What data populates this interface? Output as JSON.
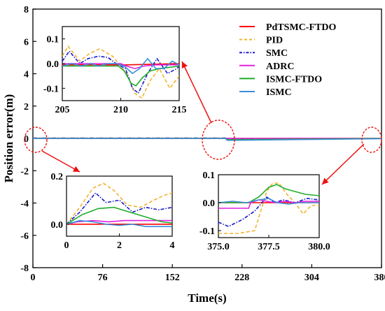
{
  "chart_data": {
    "type": "line",
    "xlabel": "Time(s)",
    "ylabel": "Position error(m)",
    "xlim": [
      0,
      380
    ],
    "ylim": [
      -8,
      8
    ],
    "xticks": [
      "0",
      "76",
      "152",
      "228",
      "304",
      "380"
    ],
    "yticks": [
      "-8",
      "-6",
      "-4",
      "-2",
      "0",
      "2",
      "4",
      "6",
      "8"
    ],
    "legend_position": "top-right",
    "series": [
      {
        "name": "PdTSMC-FTDO",
        "color": "#ff0000",
        "dash": "solid",
        "x": [
          0,
          380
        ],
        "y": [
          0.0,
          0.0
        ]
      },
      {
        "name": "PID",
        "color": "#f2b32d",
        "dash": "dashed",
        "x": [
          0,
          210,
          212,
          380
        ],
        "y": [
          0.02,
          0.02,
          -0.05,
          -0.01
        ]
      },
      {
        "name": "SMC",
        "color": "#1a1acc",
        "dash": "dashdot",
        "x": [
          0,
          210,
          212,
          380
        ],
        "y": [
          0.02,
          0.02,
          -0.05,
          -0.01
        ]
      },
      {
        "name": "ADRC",
        "color": "#e020e0",
        "dash": "solid",
        "x": [
          0,
          380
        ],
        "y": [
          0.0,
          0.0
        ]
      },
      {
        "name": "ISMC-FTDO",
        "color": "#1fae2a",
        "dash": "solid",
        "x": [
          0,
          210,
          211,
          380
        ],
        "y": [
          0.0,
          0.0,
          -0.08,
          -0.01
        ]
      },
      {
        "name": "ISMC",
        "color": "#3a8ed8",
        "dash": "solid",
        "x": [
          0,
          210,
          212,
          380
        ],
        "y": [
          0.0,
          0.0,
          -0.12,
          -0.02
        ]
      }
    ],
    "insets": [
      {
        "id": "inset-top",
        "xlim": [
          205,
          215
        ],
        "ylim": [
          -0.15,
          0.15
        ],
        "xticks": [
          "205",
          "210",
          "215"
        ],
        "yticks": [
          "-0.1",
          "0.0",
          "0.1"
        ],
        "series": [
          {
            "name": "PdTSMC-FTDO",
            "x": [
              205,
              210,
              210.5,
              215
            ],
            "y": [
              -0.005,
              -0.005,
              -0.005,
              0.0
            ]
          },
          {
            "name": "PID",
            "x": [
              205,
              205.5,
              206.5,
              207.3,
              208.2,
              209.3,
              210.5,
              211.2,
              211.8,
              212.5,
              213.3,
              214.2,
              215
            ],
            "y": [
              0.03,
              0.07,
              0.01,
              0.04,
              0.06,
              0.03,
              -0.04,
              -0.12,
              -0.14,
              -0.07,
              -0.02,
              -0.1,
              -0.05
            ]
          },
          {
            "name": "SMC",
            "x": [
              205,
              205.6,
              206.5,
              207.2,
              208.1,
              208.9,
              209.6,
              210.4,
              211,
              211.5,
              212.3,
              213.1,
              214,
              214.8,
              215
            ],
            "y": [
              0.01,
              0.05,
              0.0,
              0.02,
              0.03,
              0.025,
              0.0,
              -0.02,
              -0.1,
              -0.12,
              -0.04,
              0.02,
              -0.04,
              -0.02,
              -0.01
            ]
          },
          {
            "name": "ADRC",
            "x": [
              205,
              208,
              210,
              210.5,
              211.2,
              212,
              213,
              214,
              215
            ],
            "y": [
              0.0,
              0.0,
              0.0,
              -0.01,
              -0.02,
              -0.01,
              -0.005,
              -0.005,
              -0.005
            ]
          },
          {
            "name": "ISMC-FTDO",
            "x": [
              205,
              209.8,
              210.3,
              210.9,
              211.3,
              211.8,
              212.5,
              213.3,
              214.2,
              215
            ],
            "y": [
              -0.01,
              -0.01,
              -0.03,
              -0.08,
              -0.09,
              -0.06,
              -0.03,
              -0.02,
              -0.015,
              -0.01
            ]
          },
          {
            "name": "ISMC",
            "x": [
              205,
              205.8,
              206.6,
              207.4,
              208.1,
              208.9,
              209.6,
              210.3,
              211,
              211.6,
              212.3,
              213,
              213.7,
              214.4,
              215
            ],
            "y": [
              -0.01,
              0.0,
              -0.01,
              0.0,
              -0.01,
              0.0,
              0.0,
              -0.01,
              -0.04,
              -0.02,
              0.02,
              -0.02,
              -0.02,
              0.01,
              -0.005
            ]
          }
        ]
      },
      {
        "id": "inset-bottom-left",
        "xlim": [
          0,
          4
        ],
        "ylim": [
          -0.05,
          0.2
        ],
        "xticks": [
          "0",
          "2",
          "4"
        ],
        "yticks": [
          "0.0",
          "0.2"
        ],
        "series": [
          {
            "name": "PdTSMC-FTDO",
            "x": [
              0,
              4
            ],
            "y": [
              0.0,
              0.0
            ]
          },
          {
            "name": "PID",
            "x": [
              0,
              0.5,
              1.0,
              1.4,
              1.8,
              2.3,
              2.8,
              3.3,
              3.7,
              4.0
            ],
            "y": [
              0.0,
              0.07,
              0.15,
              0.17,
              0.14,
              0.08,
              0.07,
              0.1,
              0.12,
              0.13
            ]
          },
          {
            "name": "SMC",
            "x": [
              0,
              0.5,
              1.1,
              1.5,
              2.0,
              2.5,
              3.0,
              3.5,
              4.0
            ],
            "y": [
              0.0,
              0.05,
              0.13,
              0.09,
              0.1,
              0.05,
              0.07,
              0.06,
              0.07
            ]
          },
          {
            "name": "ADRC",
            "x": [
              0,
              0.4,
              1.0,
              1.6,
              2.2,
              2.8,
              3.4,
              4.0
            ],
            "y": [
              0.0,
              0.01,
              0.015,
              0.01,
              0.015,
              0.015,
              0.015,
              0.015
            ]
          },
          {
            "name": "ISMC-FTDO",
            "x": [
              0,
              0.6,
              1.2,
              1.8,
              2.4,
              3.0,
              3.6,
              4.0
            ],
            "y": [
              0.0,
              0.04,
              0.065,
              0.07,
              0.05,
              0.03,
              0.01,
              0.005
            ]
          },
          {
            "name": "ISMC",
            "x": [
              0,
              0.5,
              1.0,
              1.5,
              2.0,
              2.5,
              3.0,
              3.5,
              4.0
            ],
            "y": [
              0.0,
              0.015,
              0.01,
              0.0,
              -0.005,
              0.0,
              -0.01,
              -0.01,
              -0.01
            ]
          }
        ]
      },
      {
        "id": "inset-bottom-right",
        "xlim": [
          375,
          380
        ],
        "ylim": [
          -0.125,
          0.1
        ],
        "xticks": [
          "375.0",
          "377.5",
          "380.0"
        ],
        "yticks": [
          "-0.1",
          "0.0",
          "0.1"
        ],
        "series": [
          {
            "name": "PdTSMC-FTDO",
            "x": [
              375,
              380
            ],
            "y": [
              0.0,
              0.0
            ]
          },
          {
            "name": "PID",
            "x": [
              375,
              375.5,
              376,
              376.8,
              377.1,
              377.4,
              377.7,
              378.0,
              378.4,
              378.8,
              379.2,
              379.6,
              380
            ],
            "y": [
              -0.11,
              -0.11,
              -0.11,
              -0.1,
              -0.03,
              0.04,
              0.07,
              0.07,
              0.03,
              0.0,
              -0.04,
              -0.01,
              -0.01
            ]
          },
          {
            "name": "SMC",
            "x": [
              375,
              375.5,
              376.2,
              376.8,
              377.1,
              377.4,
              377.8,
              378.2,
              378.8,
              379.4,
              380
            ],
            "y": [
              -0.07,
              -0.085,
              -0.06,
              -0.03,
              -0.005,
              0.02,
              0.0,
              0.01,
              0.0,
              0.015,
              0.01
            ]
          },
          {
            "name": "ADRC",
            "x": [
              375,
              376.5,
              376.6,
              377.0,
              377.4,
              377.8,
              378.3,
              378.8,
              379.3,
              380
            ],
            "y": [
              -0.02,
              -0.02,
              0.0,
              0.01,
              0.005,
              0.0,
              0.005,
              0.0,
              0.005,
              0.005
            ]
          },
          {
            "name": "ISMC-FTDO",
            "x": [
              375,
              376.5,
              377.0,
              377.5,
              377.9,
              378.3,
              378.8,
              379.3,
              380
            ],
            "y": [
              0.0,
              0.0,
              0.02,
              0.055,
              0.065,
              0.05,
              0.04,
              0.03,
              0.025
            ]
          },
          {
            "name": "ISMC",
            "x": [
              375,
              375.7,
              376.4,
              377.0,
              377.5,
              377.9,
              378.5,
              379.0,
              379.5,
              380
            ],
            "y": [
              0.0,
              0.005,
              0.0,
              0.01,
              0.015,
              0.0,
              -0.005,
              0.0,
              0.0,
              0.0
            ]
          }
        ]
      }
    ]
  }
}
